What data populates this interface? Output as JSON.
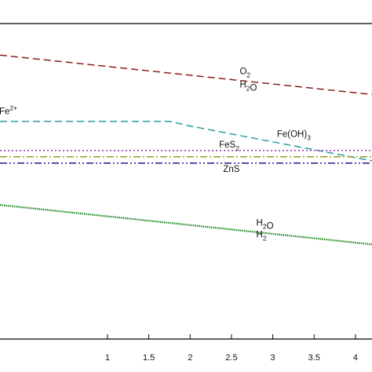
{
  "chart_data": {
    "type": "line",
    "title": "",
    "xlabel": "",
    "ylabel": "",
    "xlim": [
      -0.3,
      4.2
    ],
    "ylim": [
      -0.9,
      1.1
    ],
    "grid": false,
    "legend": "none",
    "x_ticks": [
      {
        "value": 1,
        "label": "1"
      },
      {
        "value": 1.5,
        "label": "1.5"
      },
      {
        "value": 2,
        "label": "2"
      },
      {
        "value": 2.5,
        "label": "2.5"
      },
      {
        "value": 3,
        "label": "3"
      },
      {
        "value": 3.5,
        "label": "3.5"
      },
      {
        "value": 4,
        "label": "4"
      }
    ],
    "series": [
      {
        "key": "o2-h2o",
        "color": "#8b1a1a",
        "dash": "dashed",
        "x": [
          -0.3,
          4.2
        ],
        "y": [
          0.9,
          0.65
        ]
      },
      {
        "key": "fe-line",
        "color": "#2a9d9d",
        "dash": "dashed",
        "x": [
          -0.3,
          1.75,
          2.0,
          4.2
        ],
        "y": [
          0.48,
          0.48,
          0.45,
          0.23
        ]
      },
      {
        "key": "fes2",
        "color": "#9b30b0",
        "dash": "dotted",
        "x": [
          -0.3,
          4.2
        ],
        "y": [
          0.295,
          0.295
        ]
      },
      {
        "key": "yellow-line",
        "color": "#9a9a2a",
        "dash": "dashdot",
        "x": [
          -0.3,
          4.2
        ],
        "y": [
          0.255,
          0.255
        ]
      },
      {
        "key": "zns",
        "color": "#1a1a8b",
        "dash": "dashdotdot",
        "x": [
          -0.3,
          4.2
        ],
        "y": [
          0.215,
          0.215
        ]
      },
      {
        "key": "h2o-h2",
        "color": "#228b22",
        "dash": "dotted-dense",
        "x": [
          -0.3,
          4.2
        ],
        "y": [
          -0.05,
          -0.3
        ]
      }
    ],
    "annotations": [
      {
        "key": "o2",
        "x": 2.6,
        "y": 0.78,
        "parts": [
          {
            "t": "O"
          },
          {
            "t": "2",
            "k": "sub"
          }
        ]
      },
      {
        "key": "h2o-top",
        "x": 2.6,
        "y": 0.695,
        "parts": [
          {
            "t": "H"
          },
          {
            "t": "2",
            "k": "sub"
          },
          {
            "t": "O"
          }
        ]
      },
      {
        "key": "fe2",
        "x": -0.34,
        "y": 0.525,
        "parts": [
          {
            "t": "/Fe"
          },
          {
            "t": "2+",
            "k": "sup"
          }
        ]
      },
      {
        "key": "feoh3",
        "x": 3.05,
        "y": 0.38,
        "parts": [
          {
            "t": "Fe(OH)"
          },
          {
            "t": "3",
            "k": "sub"
          }
        ]
      },
      {
        "key": "fes2",
        "x": 2.35,
        "y": 0.315,
        "parts": [
          {
            "t": "FeS"
          },
          {
            "t": "2",
            "k": "sub"
          }
        ]
      },
      {
        "key": "zns",
        "x": 2.4,
        "y": 0.16,
        "parts": [
          {
            "t": "ZnS"
          }
        ]
      },
      {
        "key": "h2o-bottom",
        "x": 2.8,
        "y": -0.18,
        "parts": [
          {
            "t": "H"
          },
          {
            "t": "2",
            "k": "sub"
          },
          {
            "t": "O"
          }
        ]
      },
      {
        "key": "h2",
        "x": 2.8,
        "y": -0.255,
        "parts": [
          {
            "t": "H"
          },
          {
            "t": "2",
            "k": "sub"
          }
        ]
      }
    ]
  }
}
